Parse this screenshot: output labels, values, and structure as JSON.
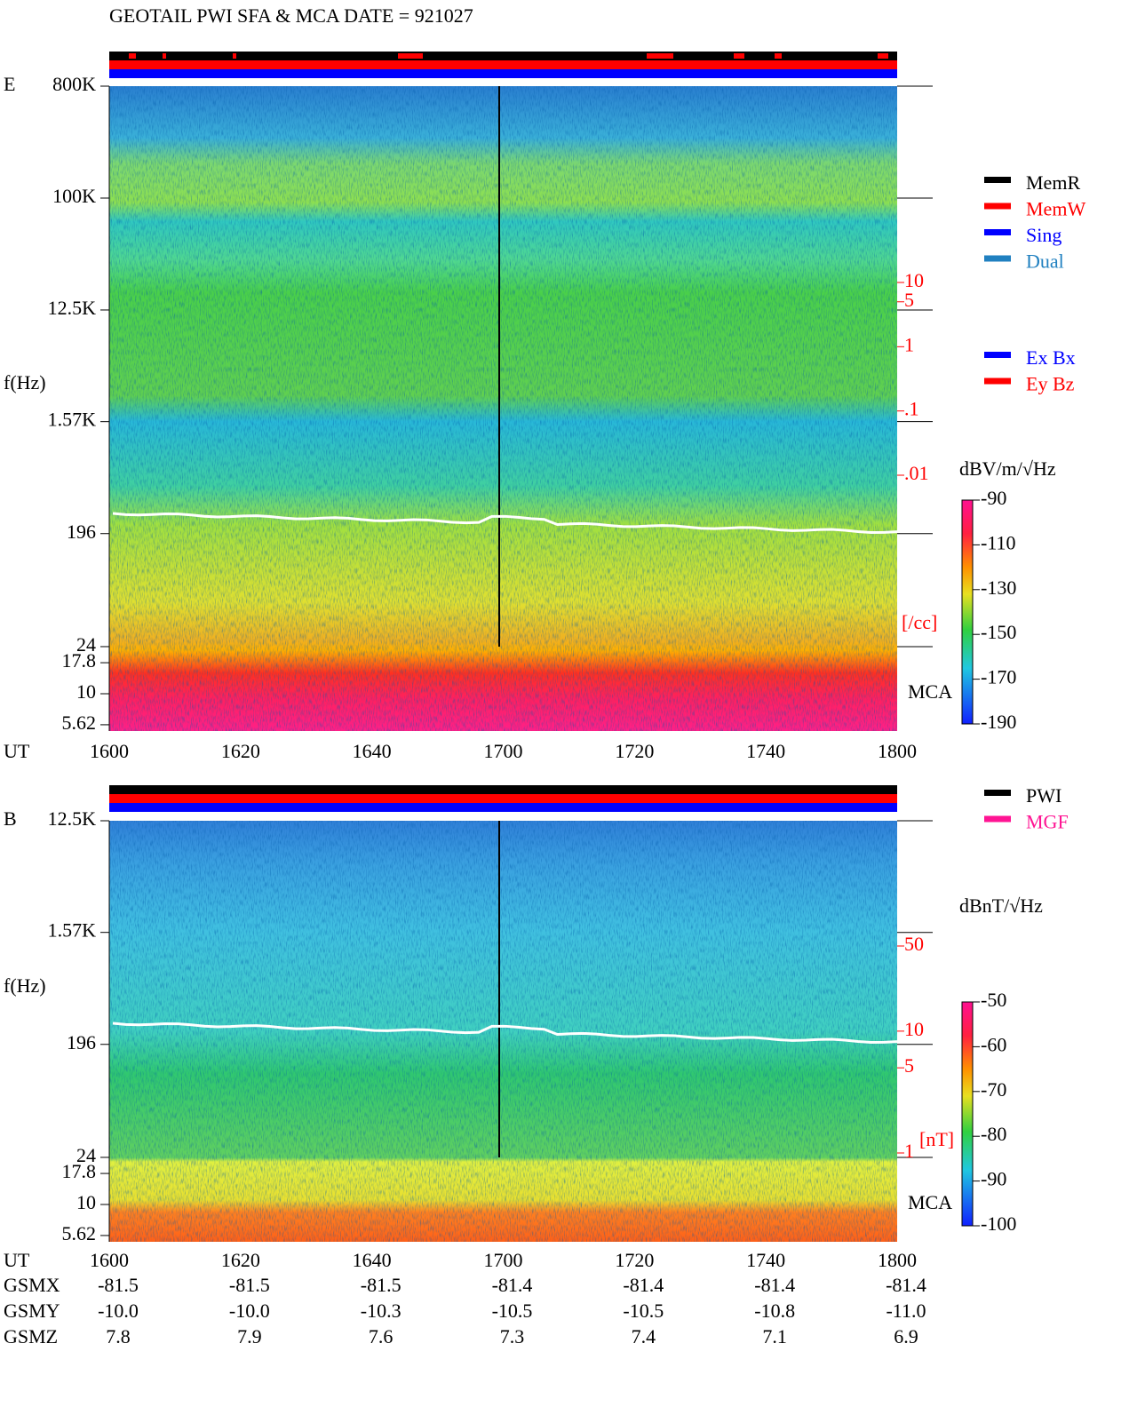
{
  "title": "GEOTAIL  PWI SFA & MCA   DATE = 921027",
  "chart_data": [
    {
      "type": "spectrogram",
      "panel": "E",
      "y_label": "f(Hz)",
      "x_label": "UT",
      "log_y": true,
      "categories": [
        "1600",
        "1620",
        "1640",
        "1700",
        "1720",
        "1740",
        "1800"
      ],
      "ylim": [
        5,
        800000
      ],
      "yticks": [
        {
          "value": 800000,
          "label": "800K"
        },
        {
          "value": 100000,
          "label": "100K"
        },
        {
          "value": 12500,
          "label": "12.5K"
        },
        {
          "value": 1570,
          "label": "1.57K"
        },
        196,
        24,
        17.8,
        10,
        5.62
      ],
      "mca_label": "MCA",
      "colorbar": {
        "label": "dBV/m/√Hz",
        "lim": [
          -190,
          -90
        ],
        "ticks": [
          -90,
          -110,
          -130,
          -150,
          -170,
          -190
        ]
      },
      "density_axis": {
        "label": "[/cc]",
        "color": "#ff0000",
        "lim": [
          0.01,
          10
        ],
        "ticks": [
          10,
          5,
          1,
          {
            "value": 0.1,
            "label": ".1"
          },
          {
            "value": 0.01,
            "label": ".01"
          }
        ]
      },
      "legend": [
        {
          "name": "MemR",
          "color": "#000000"
        },
        {
          "name": "MemW",
          "color": "#ff0000"
        },
        {
          "name": "Sing",
          "color": "#0000ff"
        },
        {
          "name": "Dual",
          "color": "#2080c0"
        }
      ],
      "legend2": [
        {
          "name": "Ex Bx",
          "color": "#0000ff"
        },
        {
          "name": "Ey Bz",
          "color": "#ff0000"
        }
      ]
    },
    {
      "type": "spectrogram",
      "panel": "B",
      "y_label": "f(Hz)",
      "x_label": "UT",
      "log_y": true,
      "categories": [
        "1600",
        "1620",
        "1640",
        "1700",
        "1720",
        "1740",
        "1800"
      ],
      "ylim": [
        5,
        12500
      ],
      "yticks": [
        {
          "value": 12500,
          "label": "12.5K"
        },
        {
          "value": 1570,
          "label": "1.57K"
        },
        196,
        24,
        17.8,
        10,
        5.62
      ],
      "mca_label": "MCA",
      "colorbar": {
        "label": "dBnT/√Hz",
        "lim": [
          -100,
          -50
        ],
        "ticks": [
          -50,
          -60,
          -70,
          -80,
          -90,
          -100
        ]
      },
      "density_axis": {
        "label": "[nT]",
        "color": "#ff0000",
        "lim": [
          1,
          50
        ],
        "ticks": [
          50,
          10,
          5,
          1
        ]
      },
      "legend": [
        {
          "name": "PWI",
          "color": "#000000"
        },
        {
          "name": "MGF",
          "color": "#ff1493"
        }
      ]
    }
  ],
  "ephemeris": {
    "rows": [
      {
        "name": "GSMX",
        "values": [
          "-81.5",
          "-81.5",
          "-81.5",
          "-81.4",
          "-81.4",
          "-81.4",
          "-81.4"
        ]
      },
      {
        "name": "GSMY",
        "values": [
          "-10.0",
          "-10.0",
          "-10.3",
          "-10.5",
          "-10.5",
          "-10.8",
          "-11.0"
        ]
      },
      {
        "name": "GSMZ",
        "values": [
          "7.8",
          "7.9",
          "7.6",
          "7.3",
          "7.4",
          "7.1",
          "6.9"
        ]
      }
    ]
  }
}
